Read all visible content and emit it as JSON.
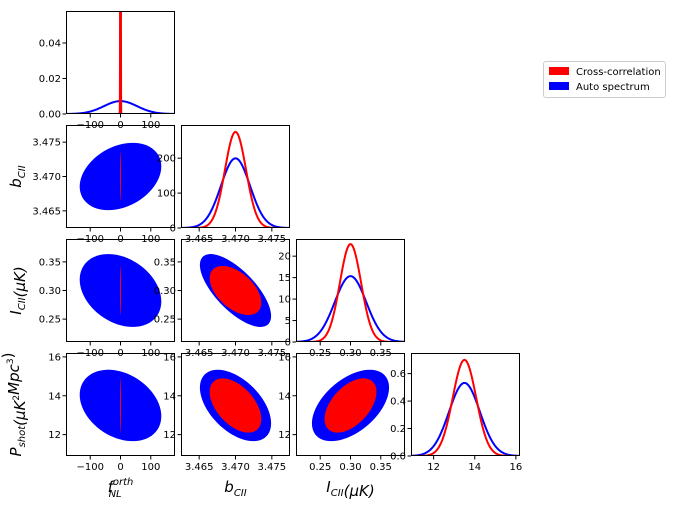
{
  "chart_data": {
    "type": "corner",
    "parameters": [
      {
        "key": "fnl",
        "label_main": "f",
        "label_sub": "NL",
        "label_sup": "orth"
      },
      {
        "key": "bcii",
        "label_main": "b",
        "label_sub": "CII"
      },
      {
        "key": "icii",
        "label_main": "I",
        "label_sub": "CII",
        "label_after": "(μK)"
      },
      {
        "key": "pshot",
        "label_main": "P",
        "label_sub": "shot",
        "label_after": "(μK",
        "label_after_sup": "2",
        "label_after2": "Mpc",
        "label_after2_sup": "3",
        "label_after3": ")"
      }
    ],
    "series": [
      {
        "name": "Cross-correlation",
        "color": "#ff0000",
        "mean": [
          0,
          3.47,
          0.3,
          13.5
        ],
        "sigma": [
          0.7,
          0.00145,
          0.0175,
          0.57
        ],
        "corr": [
          [
            1,
            0,
            0,
            0
          ],
          [
            0,
            1,
            -0.5,
            -0.5
          ],
          [
            0,
            -0.5,
            1,
            0.5
          ],
          [
            0,
            -0.5,
            0.5,
            1
          ]
        ]
      },
      {
        "name": "Auto spectrum",
        "color": "#0000ff",
        "mean": [
          0,
          3.47,
          0.3,
          13.5
        ],
        "sigma": [
          55,
          0.002,
          0.026,
          0.75
        ],
        "corr": [
          [
            1,
            0.3,
            -0.3,
            -0.3
          ],
          [
            0.3,
            1,
            -0.7,
            -0.5
          ],
          [
            -0.3,
            -0.7,
            1,
            0.5
          ],
          [
            -0.3,
            -0.5,
            0.5,
            1
          ]
        ]
      }
    ],
    "ranges": [
      [
        -180,
        180
      ],
      [
        3.4625,
        3.4775
      ],
      [
        0.21,
        0.39
      ],
      [
        10.9,
        16.2
      ]
    ],
    "ticks": [
      {
        "values": [
          -100,
          0,
          100
        ],
        "labels": [
          "−100",
          "0",
          "100"
        ]
      },
      {
        "values": [
          3.465,
          3.47,
          3.475
        ],
        "labels": [
          "3.465",
          "3.470",
          "3.475"
        ]
      },
      {
        "values": [
          0.25,
          0.3,
          0.35
        ],
        "labels": [
          "0.25",
          "0.30",
          "0.35"
        ]
      },
      {
        "values": [
          12,
          14,
          16
        ],
        "labels": [
          "12",
          "14",
          "16"
        ]
      }
    ],
    "diagonal": [
      {
        "ylim": [
          0,
          0.058
        ],
        "yticks": [
          0,
          0.02,
          0.04
        ],
        "ytick_labels": [
          "0.00",
          "0.02",
          "0.04"
        ]
      },
      {
        "ylim": [
          0,
          295
        ],
        "yticks": [
          0,
          100,
          200
        ],
        "ytick_labels": [
          "0",
          "100",
          "200"
        ]
      },
      {
        "ylim": [
          0,
          24
        ],
        "yticks": [
          0,
          5,
          10,
          15,
          20
        ],
        "ytick_labels": [
          "0",
          "5",
          "10",
          "15",
          "20"
        ]
      },
      {
        "ylim": [
          0,
          0.75
        ],
        "yticks": [
          0,
          0.2,
          0.4,
          0.6
        ],
        "ytick_labels": [
          "0.0",
          "0.2",
          "0.4",
          "0.6"
        ]
      }
    ],
    "legend_position": "upper-right",
    "grid": false
  }
}
